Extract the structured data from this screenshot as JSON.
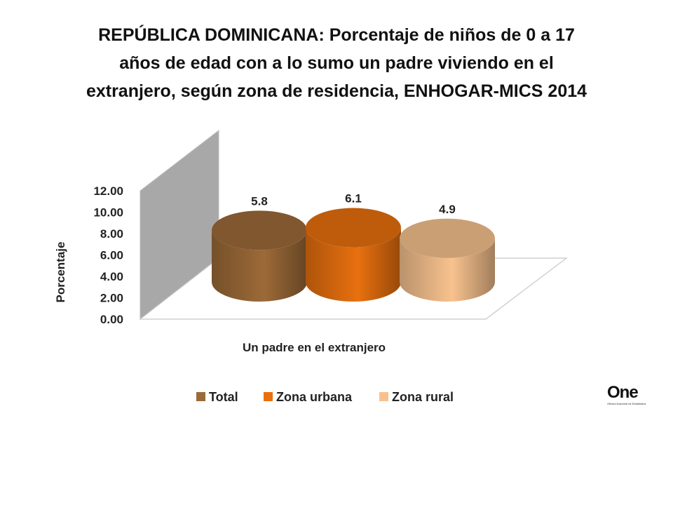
{
  "title": "REPÚBLICA DOMINICANA: Porcentaje de niños de 0 a 17\naños de edad con a lo sumo un padre viviendo en el\nextranjero, según zona de residencia, ENHOGAR-MICS 2014",
  "logo": {
    "text": "One",
    "tagline": "Oficina Nacional de Estadística"
  },
  "chart_data": {
    "type": "bar",
    "style": "3d-cylinder",
    "categories": [
      "Un padre en el extranjero"
    ],
    "series": [
      {
        "name": "Total",
        "values": [
          5.8
        ],
        "color": "#9c6a38",
        "data_label": "5.8"
      },
      {
        "name": "Zona urbana",
        "values": [
          6.1
        ],
        "color": "#e8700f",
        "data_label": "6.1"
      },
      {
        "name": "Zona rural",
        "values": [
          4.9
        ],
        "color": "#f8c28e",
        "data_label": "4.9"
      }
    ],
    "xlabel": "Un padre en el extranjero",
    "ylabel": "Porcentaje",
    "ylim": [
      0,
      12
    ],
    "yticks": [
      "0.00",
      "2.00",
      "4.00",
      "6.00",
      "8.00",
      "10.00",
      "12.00"
    ],
    "legend_position": "bottom",
    "grid": false
  }
}
